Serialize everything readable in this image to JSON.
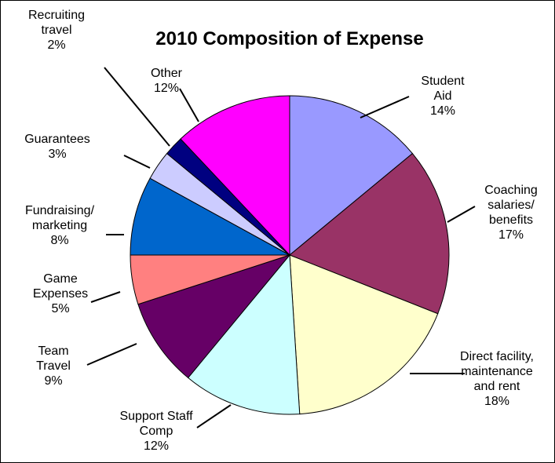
{
  "chart_data": {
    "type": "pie",
    "title": "2010 Composition of Expense",
    "legend": "none",
    "slices": [
      {
        "lines": [
          "Student",
          "Aid",
          "14%"
        ],
        "value": 14,
        "color": "#9999ff"
      },
      {
        "lines": [
          "Coaching",
          "salaries/",
          "benefits",
          "17%"
        ],
        "value": 17,
        "color": "#993366"
      },
      {
        "lines": [
          "Direct facility,",
          "maintenance",
          "and rent",
          "18%"
        ],
        "value": 18,
        "color": "#ffffcc"
      },
      {
        "lines": [
          "Support Staff",
          "Comp",
          "12%"
        ],
        "value": 12,
        "color": "#ccffff"
      },
      {
        "lines": [
          "Team",
          "Travel",
          "9%"
        ],
        "value": 9,
        "color": "#660066"
      },
      {
        "lines": [
          "Game",
          "Expenses",
          "5%"
        ],
        "value": 5,
        "color": "#ff8080"
      },
      {
        "lines": [
          "Fundraising/",
          "marketing",
          "8%"
        ],
        "value": 8,
        "color": "#0066cc"
      },
      {
        "lines": [
          "Guarantees",
          "3%"
        ],
        "value": 3,
        "color": "#ccccff"
      },
      {
        "lines": [
          "Recruiting",
          "travel",
          "2%"
        ],
        "value": 2,
        "color": "#000080"
      },
      {
        "lines": [
          "Other",
          "12%"
        ],
        "value": 12,
        "color": "#ff00ff"
      }
    ]
  }
}
